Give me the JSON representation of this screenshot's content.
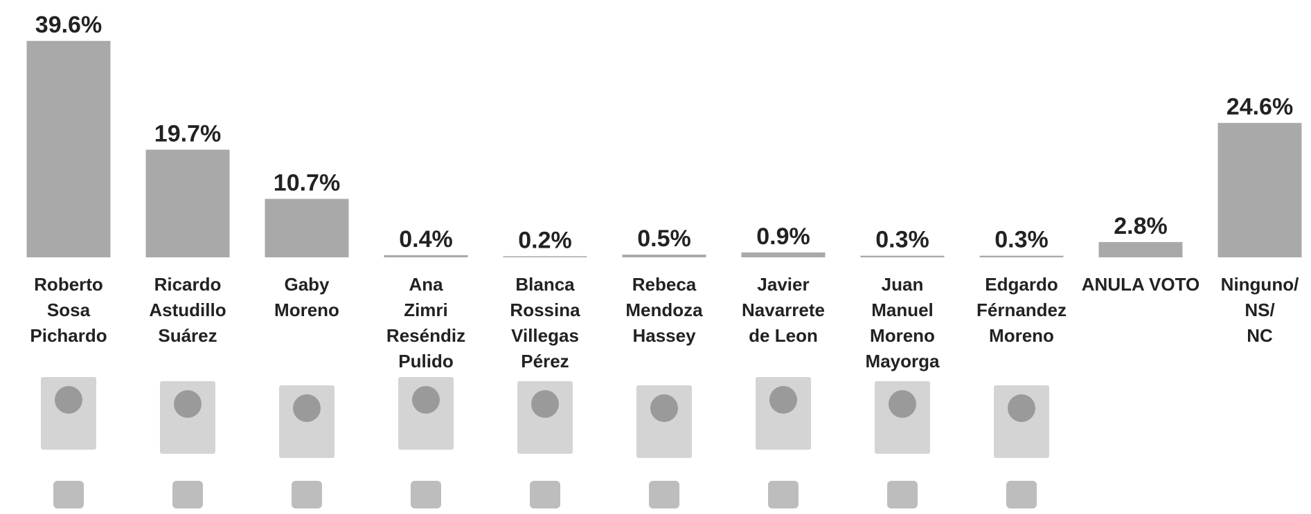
{
  "chart_data": {
    "type": "bar",
    "categories": [
      "Roberto\nSosa\nPichardo",
      "Ricardo\nAstudillo\nSuárez",
      "Gaby\nMoreno",
      "Ana\nZimri\nReséndiz\nPulido",
      "Blanca\nRossina\nVillegas\nPérez",
      "Rebeca\nMendoza\nHassey",
      "Javier\nNavarrete\nde Leon",
      "Juan\nManuel\nMoreno\nMayorga",
      "Edgardo\nFérnandez\nMoreno",
      "ANULA VOTO",
      "Ninguno/\nNS/\nNC"
    ],
    "values": [
      39.6,
      19.7,
      10.7,
      0.4,
      0.2,
      0.5,
      0.9,
      0.3,
      0.3,
      2.8,
      24.6
    ],
    "value_labels": [
      "39.6%",
      "19.7%",
      "10.7%",
      "0.4%",
      "0.2%",
      "0.5%",
      "0.9%",
      "0.3%",
      "0.3%",
      "2.8%",
      "24.6%"
    ],
    "color": "#a9a9a9"
  }
}
